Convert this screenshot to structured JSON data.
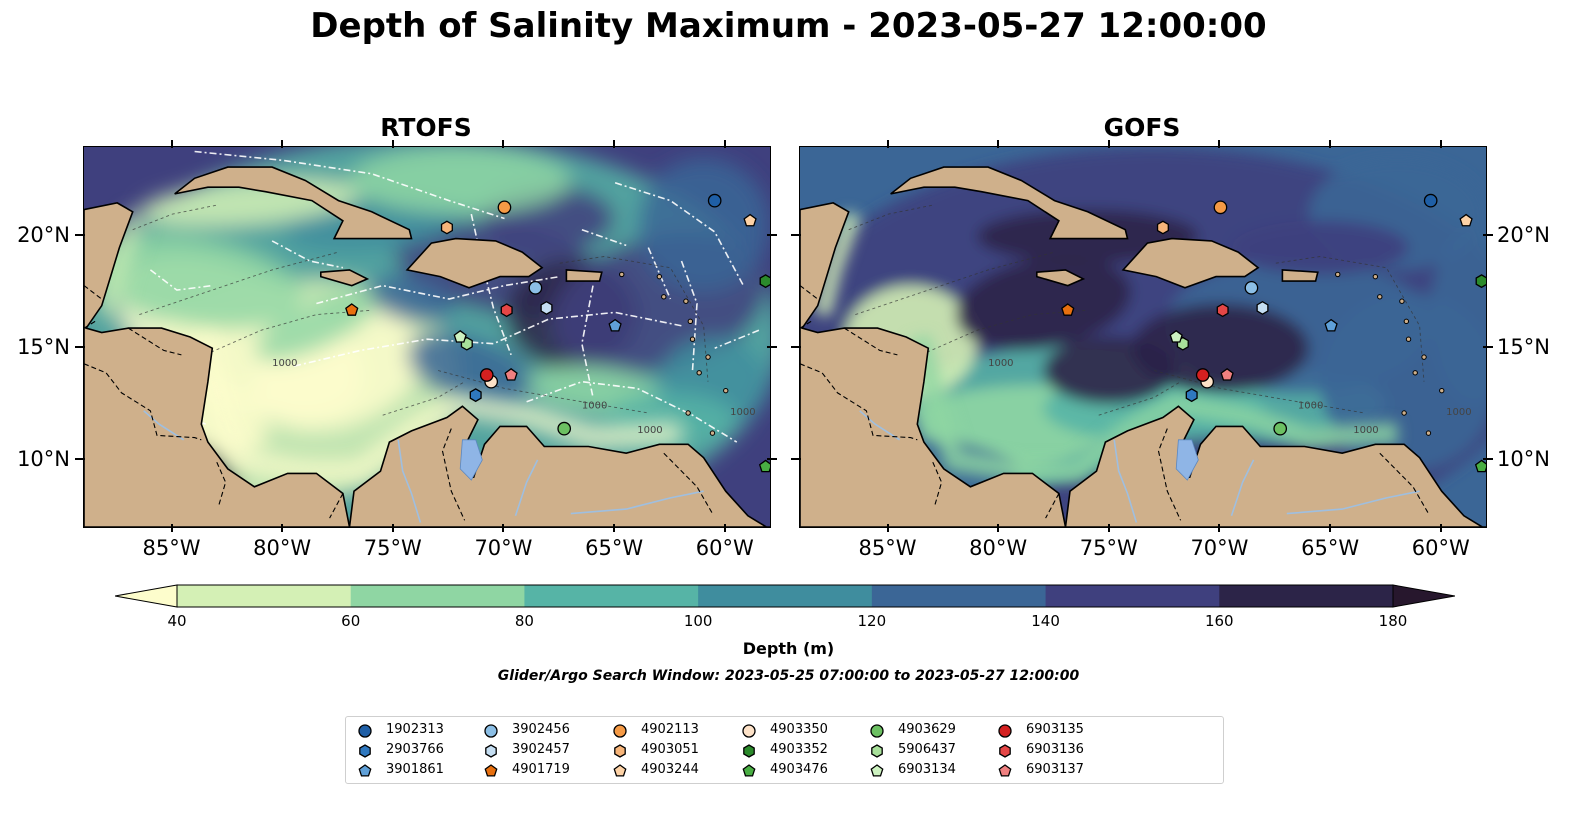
{
  "title": "Depth of Salinity Maximum - 2023-05-27 12:00:00",
  "panels": [
    {
      "title": "RTOFS",
      "style": "rtofs"
    },
    {
      "title": "GOFS",
      "style": "gofs"
    }
  ],
  "map": {
    "lon_range": [
      -89,
      -58
    ],
    "lat_range": [
      7,
      24
    ],
    "lon_ticks": [
      {
        "value": -85,
        "label": "85°W"
      },
      {
        "value": -80,
        "label": "80°W"
      },
      {
        "value": -75,
        "label": "75°W"
      },
      {
        "value": -70,
        "label": "70°W"
      },
      {
        "value": -65,
        "label": "65°W"
      },
      {
        "value": -60,
        "label": "60°W"
      }
    ],
    "lat_ticks": [
      {
        "value": 20,
        "label": "20°N"
      },
      {
        "value": 15,
        "label": "15°N"
      },
      {
        "value": 10,
        "label": "10°N"
      }
    ],
    "contour_labels": [
      "1000",
      "1000",
      "1000",
      "1000"
    ],
    "land_color": "#cfb08b",
    "coastline_color": "#000000",
    "river_color": "#9fbfe0",
    "lake_color": "#8fb5e6"
  },
  "colorbar": {
    "label": "Depth (m)",
    "ticks": [
      "40",
      "60",
      "80",
      "100",
      "120",
      "140",
      "160",
      "180"
    ],
    "colors": [
      "#fdfdcc",
      "#d4f0b5",
      "#8fd6a3",
      "#56b4a6",
      "#3f8d9e",
      "#3b6696",
      "#3f407e",
      "#2c2448",
      "#27172d"
    ],
    "extend": "both"
  },
  "search_window": "Glider/Argo Search Window: 2023-05-25 07:00:00 to 2023-05-27 12:00:00",
  "legend": [
    {
      "id": "1902313",
      "marker": "circle",
      "color": "#1f5fa6",
      "lon": -60.5,
      "lat": 21.6
    },
    {
      "id": "2903766",
      "marker": "hexagon",
      "color": "#2f78bf",
      "lon": -71.3,
      "lat": 12.9
    },
    {
      "id": "3901861",
      "marker": "pentagon",
      "color": "#5fa0d8",
      "lon": -65.0,
      "lat": 16.0
    },
    {
      "id": "3902456",
      "marker": "circle",
      "color": "#8cbfe6",
      "lon": -68.6,
      "lat": 17.7
    },
    {
      "id": "3902457",
      "marker": "hexagon",
      "color": "#c5def2",
      "lon": -68.1,
      "lat": 16.8
    },
    {
      "id": "4901719",
      "marker": "pentagon",
      "color": "#e8700f",
      "lon": -76.9,
      "lat": 16.7
    },
    {
      "id": "4902113",
      "marker": "circle",
      "color": "#f59a45",
      "lon": -70.0,
      "lat": 21.3
    },
    {
      "id": "4903051",
      "marker": "hexagon",
      "color": "#f7b57a",
      "lon": -72.6,
      "lat": 20.4
    },
    {
      "id": "4903244",
      "marker": "pentagon",
      "color": "#fdd2a6",
      "lon": -58.9,
      "lat": 20.7
    },
    {
      "id": "4903350",
      "marker": "circle",
      "color": "#fde2c8",
      "lon": -70.6,
      "lat": 13.5
    },
    {
      "id": "4903352",
      "marker": "hexagon",
      "color": "#2b8a2b",
      "lon": -58.2,
      "lat": 18.0
    },
    {
      "id": "4903476",
      "marker": "pentagon",
      "color": "#49ae43",
      "lon": -58.2,
      "lat": 9.7
    },
    {
      "id": "4903629",
      "marker": "circle",
      "color": "#6cc062",
      "lon": -67.3,
      "lat": 11.4
    },
    {
      "id": "5906437",
      "marker": "hexagon",
      "color": "#a8e09a",
      "lon": -71.7,
      "lat": 15.2
    },
    {
      "id": "6903134",
      "marker": "pentagon",
      "color": "#cdf2c0",
      "lon": -72.0,
      "lat": 15.5
    },
    {
      "id": "6903135",
      "marker": "circle",
      "color": "#d42020",
      "lon": -70.8,
      "lat": 13.8
    },
    {
      "id": "6903136",
      "marker": "hexagon",
      "color": "#e54646",
      "lon": -69.9,
      "lat": 16.7
    },
    {
      "id": "6903137",
      "marker": "pentagon",
      "color": "#f08080",
      "lon": -69.7,
      "lat": 13.8
    }
  ]
}
